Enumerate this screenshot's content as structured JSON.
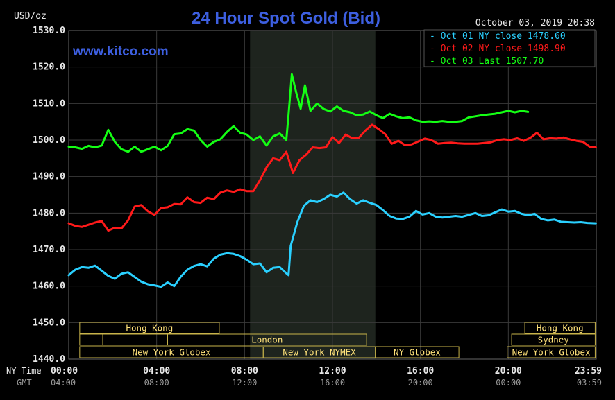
{
  "colors": {
    "background": "#000000",
    "plot_background": "#000000",
    "grid": "#3a3a3a",
    "session_band": "#1e241e",
    "axis_text": "#e8e8e8",
    "gmt_text": "#9a9a9a",
    "title": "#3d5fe0",
    "market_box": "#c8b34a",
    "market_text": "#ffe27a",
    "cyan": "#2ad0ff",
    "red": "#ff1a1a",
    "green": "#14ff14"
  },
  "header": {
    "title": "24 Hour Spot Gold (Bid)",
    "unit": "USD/oz",
    "timestamp": "October 03, 2019 20:38",
    "watermark": "www.kitco.com"
  },
  "markets": {
    "row1": [
      {
        "label": "Hong Kong",
        "from": 0.5,
        "to": 6.85
      },
      {
        "label": "Hong Kong",
        "from": 20.75,
        "to": 23.95
      }
    ],
    "row2": [
      {
        "label": "",
        "from": 0.5,
        "to": 1.55
      },
      {
        "label": "London",
        "from": 4.5,
        "to": 13.55
      },
      {
        "label": "",
        "from": 1.55,
        "to": 4.5
      },
      {
        "label": "Sydney",
        "from": 20.15,
        "to": 23.95
      }
    ],
    "row3": [
      {
        "label": "New York Globex",
        "from": 0.5,
        "to": 8.85
      },
      {
        "label": "New York NYMEX",
        "from": 8.85,
        "to": 13.95
      },
      {
        "label": "NY Globex",
        "from": 13.95,
        "to": 17.75
      },
      {
        "label": "New York Globex",
        "from": 19.95,
        "to": 23.95
      }
    ]
  },
  "chart_data": {
    "type": "line",
    "title": "24 Hour Spot Gold (Bid)",
    "ylabel": "USD/oz",
    "ylim": [
      1440,
      1530
    ],
    "y_ticks": [
      "1530.0",
      "1520.0",
      "1510.0",
      "1500.0",
      "1490.0",
      "1480.0",
      "1470.0",
      "1460.0",
      "1450.0",
      "1440.0"
    ],
    "xlim": [
      0,
      24
    ],
    "x_row_label_ny": "NY Time",
    "x_row_label_gmt": "GMT",
    "x_ticks_ny": [
      {
        "x": 0,
        "label": "00:00"
      },
      {
        "x": 4,
        "label": "04:00"
      },
      {
        "x": 8,
        "label": "08:00"
      },
      {
        "x": 12,
        "label": "12:00"
      },
      {
        "x": 16,
        "label": "16:00"
      },
      {
        "x": 20,
        "label": "20:00"
      },
      {
        "x": 23.98,
        "label": "23:59"
      }
    ],
    "x_ticks_gmt": [
      "04:00",
      "08:00",
      "12:00",
      "16:00",
      "20:00",
      "00:00",
      "03:59"
    ],
    "shaded_session": [
      8.25,
      13.95
    ],
    "grid": true,
    "legend_position": "top-right",
    "series": [
      {
        "name": "Oct 01 NY close 1478.60",
        "color": "#2ad0ff",
        "x": [
          0.0,
          0.3,
          0.6,
          0.9,
          1.2,
          1.5,
          1.8,
          2.1,
          2.4,
          2.7,
          3.0,
          3.3,
          3.6,
          3.9,
          4.2,
          4.5,
          4.8,
          5.1,
          5.4,
          5.7,
          6.0,
          6.3,
          6.6,
          6.9,
          7.2,
          7.5,
          7.8,
          8.1,
          8.4,
          8.7,
          9.0,
          9.3,
          9.6,
          9.9,
          10.0,
          10.1,
          10.4,
          10.7,
          11.0,
          11.3,
          11.6,
          11.9,
          12.2,
          12.5,
          12.8,
          13.1,
          13.4,
          13.7,
          14.0,
          14.3,
          14.6,
          14.9,
          15.2,
          15.5,
          15.8,
          16.1,
          16.4,
          16.7,
          17.0,
          17.3,
          17.6,
          17.9,
          18.2,
          18.5,
          18.8,
          19.1,
          19.4,
          19.7,
          20.0,
          20.3,
          20.6,
          20.9,
          21.2,
          21.5,
          21.8,
          22.1,
          22.4,
          22.7,
          23.0,
          23.3,
          23.6,
          23.98
        ],
        "values": [
          1463.0,
          1464.5,
          1465.2,
          1465.0,
          1465.6,
          1464.2,
          1462.8,
          1462.0,
          1463.4,
          1463.8,
          1462.5,
          1461.2,
          1460.5,
          1460.2,
          1459.8,
          1461.0,
          1460.0,
          1462.6,
          1464.5,
          1465.5,
          1466.0,
          1465.4,
          1467.5,
          1468.6,
          1469.0,
          1468.8,
          1468.2,
          1467.2,
          1466.0,
          1466.2,
          1463.8,
          1465.0,
          1465.2,
          1463.5,
          1463.0,
          1471.0,
          1477.5,
          1482.0,
          1483.5,
          1483.0,
          1483.8,
          1485.0,
          1484.5,
          1485.6,
          1483.8,
          1482.6,
          1483.5,
          1482.8,
          1482.2,
          1480.8,
          1479.2,
          1478.5,
          1478.4,
          1479.0,
          1480.6,
          1479.6,
          1480.0,
          1479.0,
          1478.8,
          1479.0,
          1479.2,
          1479.0,
          1479.5,
          1480.0,
          1479.2,
          1479.4,
          1480.2,
          1481.0,
          1480.4,
          1480.6,
          1479.8,
          1479.4,
          1479.8,
          1478.4,
          1478.0,
          1478.2,
          1477.6,
          1477.5,
          1477.4,
          1477.5,
          1477.3,
          1477.2
        ]
      },
      {
        "name": "Oct 02 NY close 1498.90",
        "color": "#ff1a1a",
        "x": [
          0.0,
          0.3,
          0.6,
          0.9,
          1.2,
          1.5,
          1.8,
          2.1,
          2.4,
          2.7,
          3.0,
          3.3,
          3.6,
          3.9,
          4.2,
          4.5,
          4.8,
          5.1,
          5.4,
          5.7,
          6.0,
          6.3,
          6.6,
          6.9,
          7.2,
          7.5,
          7.8,
          8.1,
          8.4,
          8.7,
          9.0,
          9.3,
          9.6,
          9.9,
          10.2,
          10.5,
          10.8,
          11.1,
          11.4,
          11.7,
          12.0,
          12.3,
          12.6,
          12.9,
          13.2,
          13.5,
          13.8,
          14.1,
          14.4,
          14.7,
          15.0,
          15.3,
          15.6,
          15.9,
          16.2,
          16.5,
          16.8,
          17.1,
          17.4,
          17.7,
          18.0,
          18.3,
          18.6,
          18.9,
          19.2,
          19.5,
          19.8,
          20.1,
          20.4,
          20.7,
          21.0,
          21.3,
          21.6,
          21.9,
          22.2,
          22.5,
          22.8,
          23.1,
          23.4,
          23.7,
          23.98
        ],
        "values": [
          1477.2,
          1476.5,
          1476.2,
          1476.8,
          1477.4,
          1477.8,
          1475.2,
          1476.0,
          1475.8,
          1478.0,
          1481.8,
          1482.2,
          1480.5,
          1479.5,
          1481.4,
          1481.6,
          1482.5,
          1482.4,
          1484.3,
          1483.0,
          1482.8,
          1484.2,
          1483.8,
          1485.6,
          1486.2,
          1485.8,
          1486.5,
          1486.0,
          1486.0,
          1489.0,
          1492.5,
          1495.0,
          1494.5,
          1496.8,
          1491.0,
          1494.5,
          1496.0,
          1498.0,
          1497.8,
          1498.0,
          1500.8,
          1499.2,
          1501.5,
          1500.5,
          1500.6,
          1502.6,
          1504.2,
          1503.0,
          1501.6,
          1499.0,
          1499.8,
          1498.6,
          1498.8,
          1499.6,
          1500.4,
          1500.0,
          1499.0,
          1499.2,
          1499.3,
          1499.1,
          1499.0,
          1499.0,
          1499.0,
          1499.2,
          1499.4,
          1500.0,
          1500.2,
          1500.0,
          1500.5,
          1499.8,
          1500.6,
          1502.0,
          1500.2,
          1500.5,
          1500.4,
          1500.7,
          1500.2,
          1499.8,
          1499.5,
          1498.2,
          1498.0
        ]
      },
      {
        "name": "Oct 03 Last 1507.70",
        "color": "#14ff14",
        "x": [
          0.0,
          0.3,
          0.6,
          0.9,
          1.2,
          1.5,
          1.8,
          2.1,
          2.4,
          2.7,
          3.0,
          3.3,
          3.6,
          3.9,
          4.2,
          4.5,
          4.8,
          5.1,
          5.4,
          5.7,
          6.0,
          6.3,
          6.6,
          6.9,
          7.2,
          7.5,
          7.8,
          8.1,
          8.4,
          8.7,
          9.0,
          9.3,
          9.6,
          9.9,
          10.0,
          10.15,
          10.35,
          10.55,
          10.75,
          11.0,
          11.3,
          11.6,
          11.9,
          12.2,
          12.5,
          12.8,
          13.1,
          13.4,
          13.7,
          14.0,
          14.3,
          14.6,
          14.9,
          15.2,
          15.5,
          15.8,
          16.1,
          16.4,
          16.7,
          17.0,
          17.3,
          17.6,
          17.9,
          18.2,
          18.5,
          18.8,
          19.1,
          19.4,
          19.7,
          20.0,
          20.3,
          20.6,
          20.9
        ],
        "values": [
          1498.2,
          1498.0,
          1497.6,
          1498.4,
          1498.0,
          1498.5,
          1502.8,
          1499.5,
          1497.5,
          1496.8,
          1498.2,
          1496.8,
          1497.5,
          1498.2,
          1497.2,
          1498.4,
          1501.6,
          1501.8,
          1503.0,
          1502.6,
          1500.0,
          1498.2,
          1499.5,
          1500.2,
          1502.2,
          1503.8,
          1502.0,
          1501.5,
          1500.0,
          1501.0,
          1498.5,
          1501.0,
          1501.8,
          1500.0,
          1507.0,
          1518.0,
          1513.0,
          1508.6,
          1515.0,
          1508.0,
          1510.0,
          1508.5,
          1507.8,
          1509.2,
          1508.0,
          1507.6,
          1506.8,
          1507.0,
          1507.8,
          1506.8,
          1506.0,
          1507.2,
          1506.5,
          1506.0,
          1506.2,
          1505.4,
          1505.0,
          1505.1,
          1505.0,
          1505.2,
          1505.0,
          1505.0,
          1505.2,
          1506.2,
          1506.5,
          1506.8,
          1507.0,
          1507.2,
          1507.6,
          1508.0,
          1507.6,
          1508.0,
          1507.7
        ]
      }
    ]
  }
}
